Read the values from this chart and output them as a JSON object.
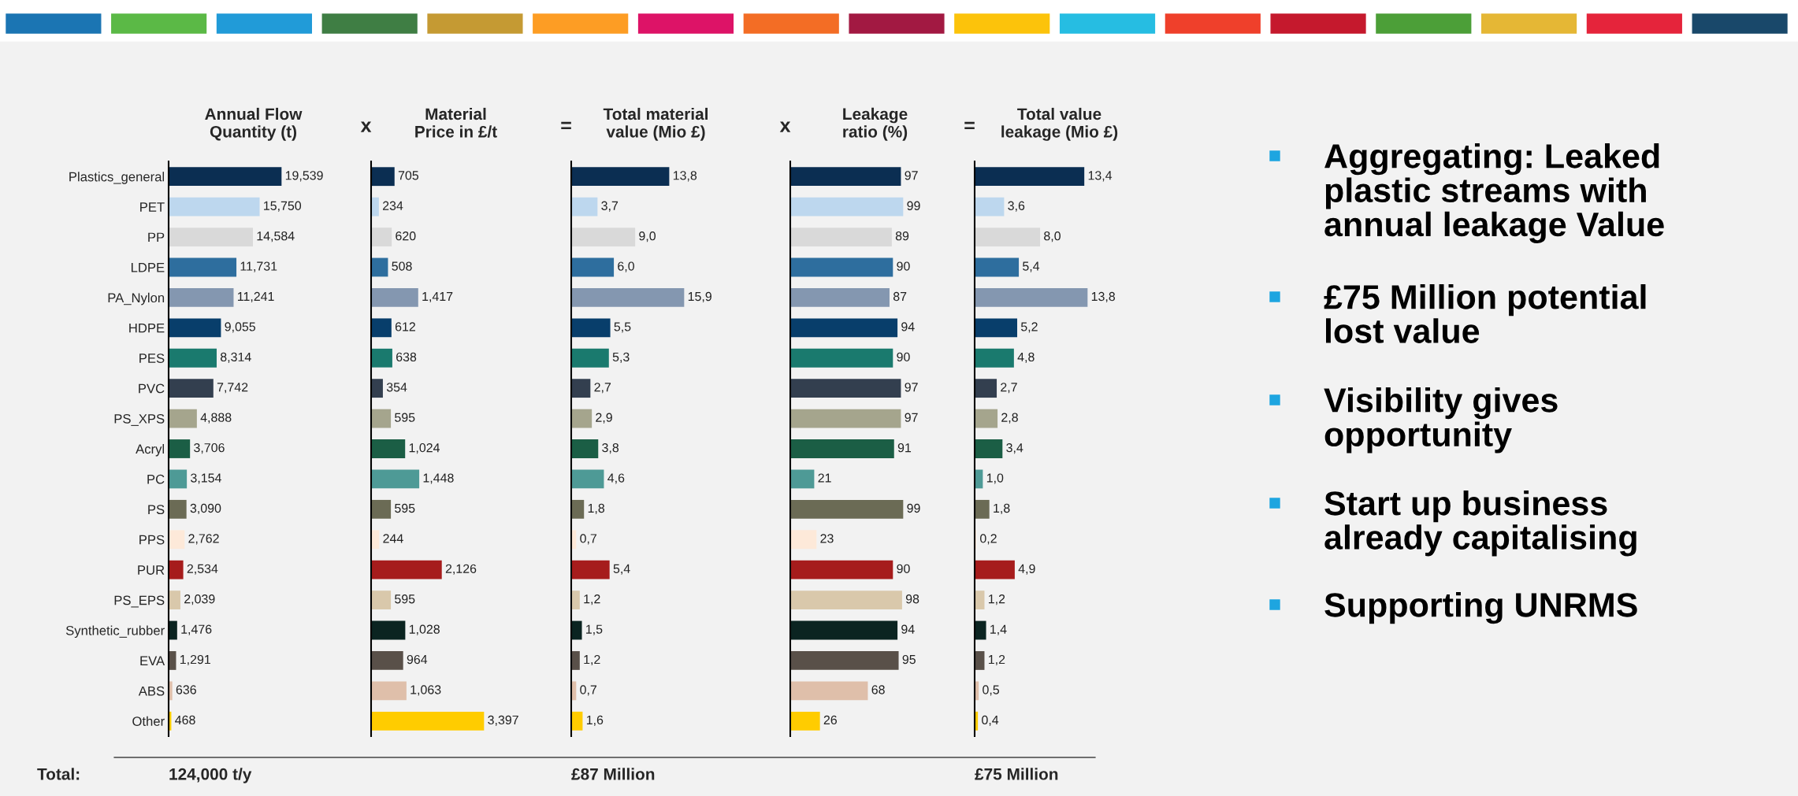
{
  "chart_data": [
    {
      "type": "bar",
      "orientation": "horizontal",
      "title": "Annual Flow\nQuantity (t)",
      "tick_labels": "y",
      "legend": false,
      "grid": false,
      "categories": [
        "Plastics_general",
        "PET",
        "PP",
        "LDPE",
        "PA_Nylon",
        "HDPE",
        "PES",
        "PVC",
        "PS_XPS",
        "Acryl",
        "PC",
        "PS",
        "PPS",
        "PUR",
        "PS_EPS",
        "Synthetic_rubber",
        "EVA",
        "ABS",
        "Other"
      ],
      "values": [
        19539,
        15750,
        14584,
        11731,
        11241,
        9055,
        8314,
        7742,
        4888,
        3706,
        3154,
        3090,
        2762,
        2534,
        2039,
        1476,
        1291,
        636,
        468
      ],
      "value_labels": [
        "19,539",
        "15,750",
        "14,584",
        "11,731",
        "11,241",
        "9,055",
        "8,314",
        "7,742",
        "4,888",
        "3,706",
        "3,154",
        "3,090",
        "2,762",
        "2,534",
        "2,039",
        "1,476",
        "1,291",
        "636",
        "468"
      ],
      "colors": [
        "#0b2e52",
        "#bdd7ee",
        "#d9d9d9",
        "#2e6e9e",
        "#8497b0",
        "#083e6b",
        "#1a7a6e",
        "#333f4f",
        "#a5a58d",
        "#1b5e45",
        "#4e9a96",
        "#6b6b55",
        "#fde9d9",
        "#a61c1c",
        "#d9c8ab",
        "#0b2421",
        "#595049",
        "#dfbfaa",
        "#ffcc00"
      ],
      "annotations": [
        "Total:",
        "124,000 t/y"
      ]
    },
    {
      "type": "bar",
      "orientation": "horizontal",
      "title": "Material\nPrice in £/t",
      "tick_labels": false,
      "legend": false,
      "grid": false,
      "categories": [
        null,
        null,
        null,
        null,
        null,
        null,
        null,
        null,
        null,
        null,
        null,
        null,
        null,
        null,
        null,
        null,
        null,
        null,
        null
      ],
      "values": [
        705,
        234,
        620,
        508,
        1417,
        612,
        638,
        354,
        595,
        1024,
        1448,
        595,
        244,
        2126,
        595,
        1028,
        964,
        1063,
        3397
      ],
      "value_labels": [
        "705",
        "234",
        "620",
        "508",
        "1,417",
        "612",
        "638",
        "354",
        "595",
        "1,024",
        "1,448",
        "595",
        "244",
        "2,126",
        "595",
        "1,028",
        "964",
        "1,063",
        "3,397"
      ],
      "colors": [
        "#0b2e52",
        "#bdd7ee",
        "#d9d9d9",
        "#2e6e9e",
        "#8497b0",
        "#083e6b",
        "#1a7a6e",
        "#333f4f",
        "#a5a58d",
        "#1b5e45",
        "#4e9a96",
        "#6b6b55",
        "#fde9d9",
        "#a61c1c",
        "#d9c8ab",
        "#0b2421",
        "#595049",
        "#dfbfaa",
        "#ffcc00"
      ],
      "annotations": [
        "x"
      ]
    },
    {
      "type": "bar",
      "orientation": "horizontal",
      "title": "Total material\nvalue (Mio £)",
      "tick_labels": false,
      "legend": false,
      "grid": false,
      "categories": [
        null,
        null,
        null,
        null,
        null,
        null,
        null,
        null,
        null,
        null,
        null,
        null,
        null,
        null,
        null,
        null,
        null,
        null,
        null
      ],
      "values": [
        13.8,
        3.7,
        9.0,
        6.0,
        15.9,
        5.5,
        5.3,
        2.7,
        2.9,
        3.8,
        4.6,
        1.8,
        0.7,
        5.4,
        1.2,
        1.5,
        1.2,
        0.7,
        1.6
      ],
      "value_labels": [
        "13,8",
        "3,7",
        "9,0",
        "6,0",
        "15,9",
        "5,5",
        "5,3",
        "2,7",
        "2,9",
        "3,8",
        "4,6",
        "1,8",
        "0,7",
        "5,4",
        "1,2",
        "1,5",
        "1,2",
        "0,7",
        "1,6"
      ],
      "colors": [
        "#0b2e52",
        "#bdd7ee",
        "#d9d9d9",
        "#2e6e9e",
        "#8497b0",
        "#083e6b",
        "#1a7a6e",
        "#333f4f",
        "#a5a58d",
        "#1b5e45",
        "#4e9a96",
        "#6b6b55",
        "#fde9d9",
        "#a61c1c",
        "#d9c8ab",
        "#0b2421",
        "#595049",
        "#dfbfaa",
        "#ffcc00"
      ],
      "annotations": [
        "=",
        "£87 Million"
      ]
    },
    {
      "type": "bar",
      "orientation": "horizontal",
      "title": "Leakage\nratio (%)",
      "tick_labels": false,
      "legend": false,
      "grid": false,
      "data_labels": true,
      "categories": [
        null,
        null,
        null,
        null,
        null,
        null,
        null,
        null,
        null,
        null,
        null,
        null,
        null,
        null,
        null,
        null,
        null,
        null,
        null
      ],
      "values": [
        97,
        99,
        89,
        90,
        87,
        94,
        90,
        97,
        97,
        91,
        21,
        99,
        23,
        90,
        98,
        94,
        95,
        68,
        26
      ],
      "colors": [
        "#0b2e52",
        "#bdd7ee",
        "#d9d9d9",
        "#2e6e9e",
        "#8497b0",
        "#083e6b",
        "#1a7a6e",
        "#333f4f",
        "#a5a58d",
        "#1b5e45",
        "#4e9a96",
        "#6b6b55",
        "#fde9d9",
        "#a61c1c",
        "#d9c8ab",
        "#0b2421",
        "#595049",
        "#dfbfaa",
        "#ffcc00"
      ],
      "annotations": [
        "x"
      ]
    },
    {
      "type": "bar",
      "orientation": "horizontal",
      "title": "Total value\nleakage (Mio £)",
      "tick_labels": false,
      "legend": false,
      "grid": false,
      "categories": [
        null,
        null,
        null,
        null,
        null,
        null,
        null,
        null,
        null,
        null,
        null,
        null,
        null,
        null,
        null,
        null,
        null,
        null,
        null
      ],
      "values": [
        13.4,
        3.6,
        8.0,
        5.4,
        13.8,
        5.2,
        4.8,
        2.7,
        2.8,
        3.4,
        1.0,
        1.8,
        0.2,
        4.9,
        1.2,
        1.4,
        1.2,
        0.5,
        0.4
      ],
      "value_labels": [
        "13,4",
        "3,6",
        "8,0",
        "5,4",
        "13,8",
        "5,2",
        "4,8",
        "2,7",
        "2,8",
        "3,4",
        "1,0",
        "1,8",
        "0,2",
        "4,9",
        "1,2",
        "1,4",
        "1,2",
        "0,5",
        "0,4"
      ],
      "colors": [
        "#0b2e52",
        "#bdd7ee",
        "#d9d9d9",
        "#2e6e9e",
        "#8497b0",
        "#083e6b",
        "#1a7a6e",
        "#333f4f",
        "#a5a58d",
        "#1b5e45",
        "#4e9a96",
        "#6b6b55",
        "#fde9d9",
        "#a61c1c",
        "#d9c8ab",
        "#0b2421",
        "#595049",
        "#dfbfaa",
        "#ffcc00"
      ],
      "annotations": [
        "=",
        "£75 Million"
      ]
    },
    {
      "type": "other",
      "annotations": [
        "Aggregating: Leaked\nplastic streams with\nannual leakage Value",
        "£75 Million potential\nlost value",
        "Visibility gives\nopportunity",
        "Start up business\nalready capitalising",
        "Supporting UNRMS"
      ]
    }
  ]
}
